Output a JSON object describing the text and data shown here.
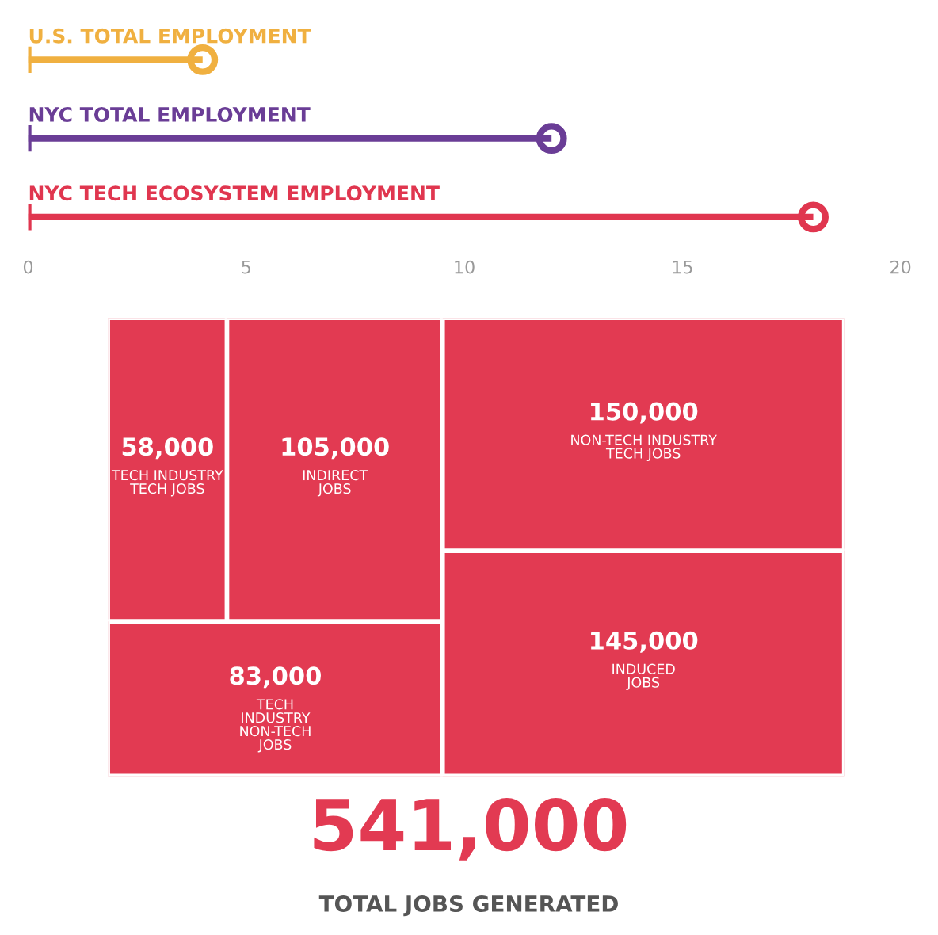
{
  "chart_data": [
    {
      "type": "lollipop",
      "orientation": "horizontal",
      "categories": [
        "U.S. TOTAL EMPLOYMENT",
        "NYC TOTAL EMPLOYMENT",
        "NYC TECH ECOSYSTEM EMPLOYMENT"
      ],
      "values": [
        4,
        12,
        18
      ],
      "colors": [
        "#f0b040",
        "#6a3d96",
        "#e0364f"
      ],
      "xlim": [
        0,
        20
      ],
      "xticks": [
        0,
        5,
        10,
        15,
        20
      ],
      "tick_labels": "x",
      "grid": false,
      "marker": "circle"
    },
    {
      "type": "other",
      "categories": [
        "TECH INDUSTRY\nTECH JOBS",
        "INDIRECT\nJOBS",
        "TECH\nINDUSTRY\nNON-TECH\nJOBS",
        "NON-TECH INDUSTRY\nTECH JOBS",
        "INDUCED\nJOBS"
      ],
      "values": [
        58000,
        105000,
        83000,
        150000,
        145000
      ],
      "value_labels": [
        "58,000",
        "105,000",
        "83,000",
        "150,000",
        "145,000"
      ],
      "color": "#e23a52",
      "annotations": [
        "541,000",
        "TOTAL JOBS GENERATED"
      ]
    }
  ]
}
